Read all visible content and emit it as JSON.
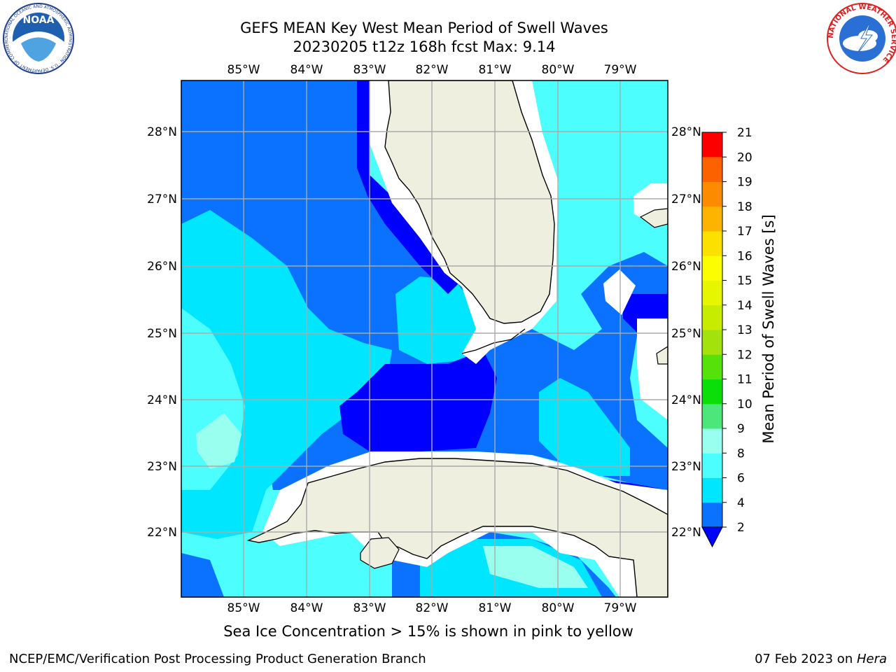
{
  "title": {
    "line1": "GEFS MEAN Key West Mean Period of Swell Waves",
    "line2": "20230205 t12z 168h fcst   Max: 9.14"
  },
  "note": "Sea Ice Concentration > 15% is shown in pink to yellow",
  "footer": {
    "left": "NCEP/EMC/Verification Post Processing Product Generation Branch",
    "date": "07 Feb 2023 on ",
    "machine": "Hera"
  },
  "logos": {
    "noaa": {
      "text": "NOAA",
      "ring_text": "NATIONAL OCEANIC AND ATMOSPHERIC ADMINISTRATION · U.S. DEPARTMENT OF COMMERCE"
    },
    "nws": {
      "ring_text": "NATIONAL WEATHER SERVICE"
    }
  },
  "map": {
    "lon_ticks": [
      "85°W",
      "84°W",
      "83°W",
      "82°W",
      "81°W",
      "80°W",
      "79°W"
    ],
    "lat_ticks": [
      "28°N",
      "27°N",
      "26°N",
      "25°N",
      "24°N",
      "23°N",
      "22°N"
    ],
    "lon_range": [
      -86.0,
      -78.3
    ],
    "lat_range": [
      21.0,
      28.8
    ],
    "ocean_color": "#4cfefe",
    "land_color": "#efefdf"
  },
  "colorbar": {
    "label": "Mean Period of Swell Waves [s]",
    "ticks": [
      "2",
      "4",
      "6",
      "8",
      "9",
      "10",
      "11",
      "12",
      "13",
      "14",
      "15",
      "16",
      "17",
      "18",
      "19",
      "20",
      "21"
    ],
    "colors": [
      "#0a72ff",
      "#00e6ff",
      "#4cfefe",
      "#99ffee",
      "#4ce67a",
      "#0adf0a",
      "#55e10a",
      "#a3e20a",
      "#c7ec00",
      "#e6f500",
      "#fcfd00",
      "#fbe000",
      "#fcb400",
      "#fc8b00",
      "#fc6300",
      "#fc3c00",
      "#fc0000"
    ],
    "under_color": "#0000ff"
  }
}
